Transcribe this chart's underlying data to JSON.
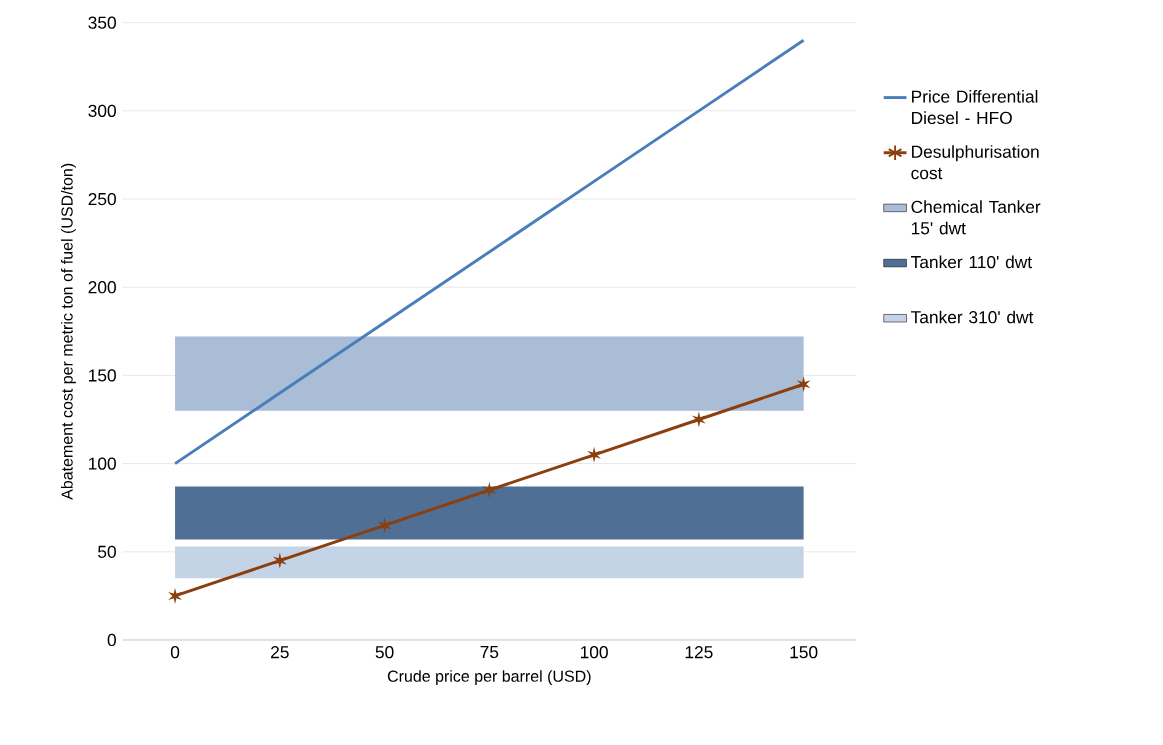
{
  "chart_data": {
    "type": "line",
    "xlabel": "Crude price per barrel (USD)",
    "ylabel": "Abatement cost per metric ton of fuel (USD/ton)",
    "categories": [
      "0",
      "25",
      "50",
      "75",
      "100",
      "125",
      "150"
    ],
    "series": [
      {
        "name": "Price Differential Diesel - HFO",
        "color": "#4a7ebb",
        "line_style": "solid",
        "marker": "none",
        "values": [
          100,
          140,
          180,
          220,
          260,
          300,
          340
        ]
      },
      {
        "name": "Desulphurisation cost",
        "color": "#8b3f0f",
        "line_style": "solid",
        "marker": "cross",
        "values": [
          25,
          45,
          65,
          85,
          105,
          125,
          145
        ]
      }
    ],
    "bands": [
      {
        "axis": "y",
        "from": 130,
        "to": 172,
        "label": "Chemical Tanker 15' dwt",
        "color": "#a9bdd6"
      },
      {
        "axis": "y",
        "from": 57,
        "to": 87,
        "label": "Tanker 110' dwt",
        "color": "#4f6f95"
      },
      {
        "axis": "y",
        "from": 35,
        "to": 53,
        "label": "Tanker 310' dwt",
        "color": "#c5d3e6"
      }
    ],
    "ylim": [
      0,
      350
    ],
    "yticks": [
      0,
      50,
      100,
      150,
      200,
      250,
      300,
      350
    ],
    "grid": "y",
    "legend": "right"
  }
}
